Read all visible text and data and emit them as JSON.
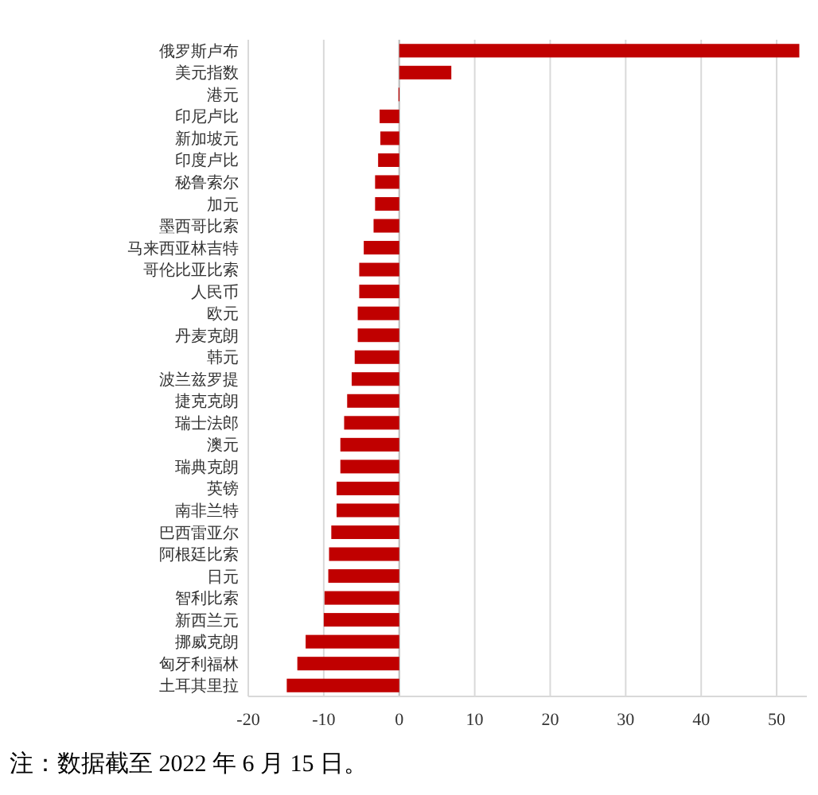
{
  "chart_data": {
    "type": "bar",
    "orientation": "horizontal",
    "categories": [
      "俄罗斯卢布",
      "美元指数",
      "港元",
      "印尼卢比",
      "新加坡元",
      "印度卢比",
      "秘鲁索尔",
      "加元",
      "墨西哥比索",
      "马来西亚林吉特",
      "哥伦比亚比索",
      "人民币",
      "欧元",
      "丹麦克朗",
      "韩元",
      "波兰兹罗提",
      "捷克克朗",
      "瑞士法郎",
      "澳元",
      "瑞典克朗",
      "英镑",
      "南非兰特",
      "巴西雷亚尔",
      "阿根廷比索",
      "日元",
      "智利比索",
      "新西兰元",
      "挪威克朗",
      "匈牙利福林",
      "土耳其里拉"
    ],
    "values": [
      53,
      6.9,
      -0.1,
      -2.6,
      -2.5,
      -2.8,
      -3.2,
      -3.2,
      -3.4,
      -4.7,
      -5.3,
      -5.3,
      -5.5,
      -5.5,
      -5.9,
      -6.3,
      -6.9,
      -7.3,
      -7.8,
      -7.8,
      -8.3,
      -8.3,
      -9.0,
      -9.3,
      -9.4,
      -9.9,
      -10.0,
      -12.4,
      -13.5,
      -14.9
    ],
    "color": "#c00000",
    "xlim": [
      -20,
      54
    ],
    "xticks": [
      -20,
      -10,
      0,
      10,
      20,
      30,
      40,
      50
    ],
    "grid": "x",
    "annotations": [
      "注：数据截至 2022 年 6 月 15 日。"
    ]
  }
}
